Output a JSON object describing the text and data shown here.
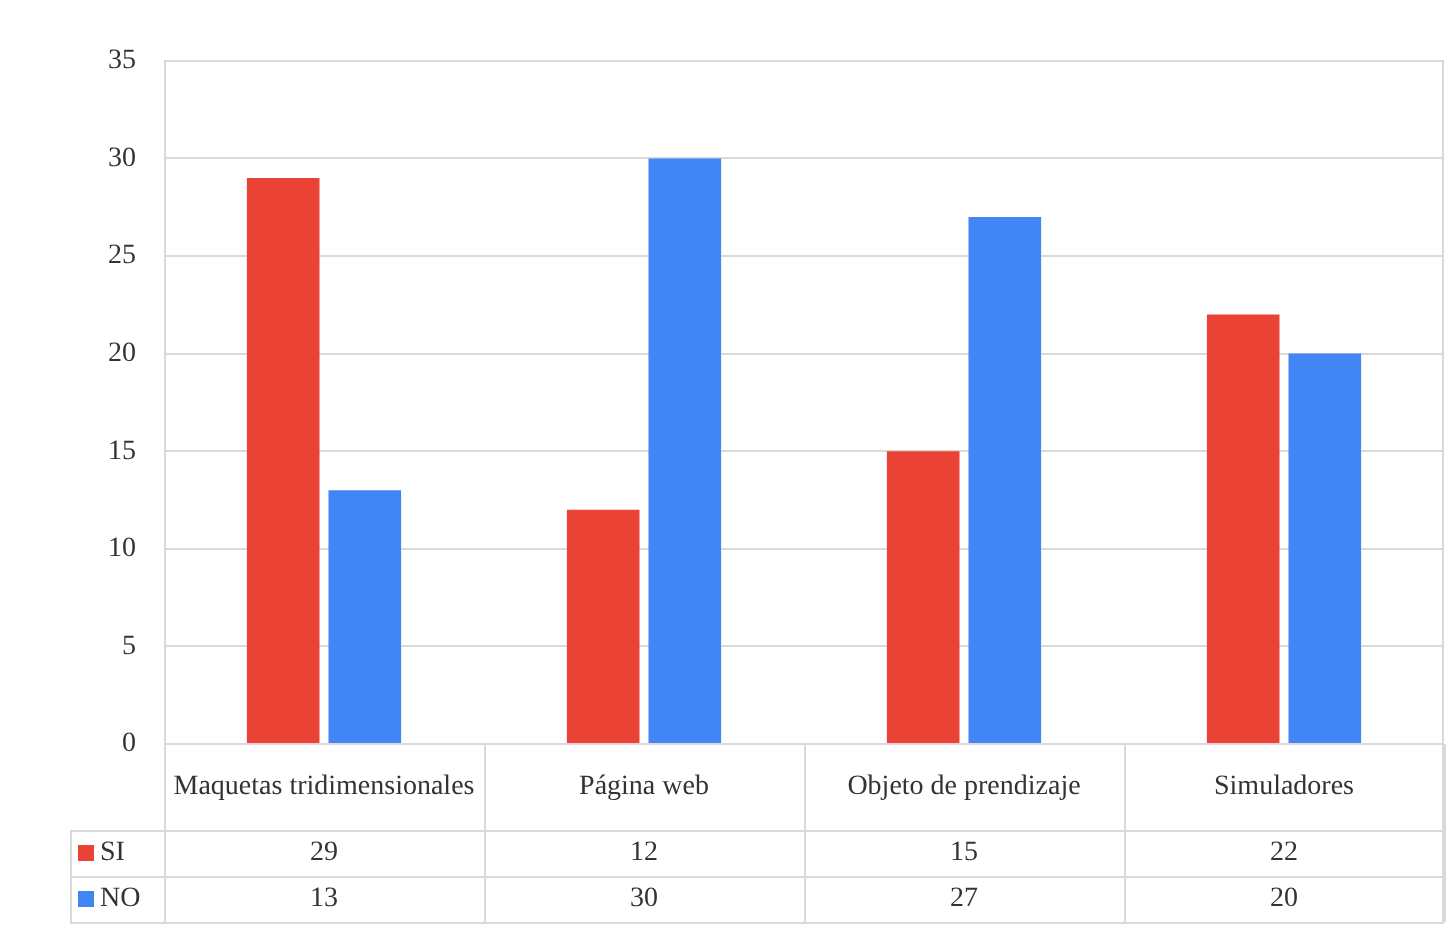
{
  "chart_data": {
    "type": "bar",
    "categories": [
      "Maquetas tridimensionales",
      "Página web",
      "Objeto de prendizaje",
      "Simuladores"
    ],
    "series": [
      {
        "name": "SI",
        "color": "#ea4335",
        "values": [
          29,
          12,
          15,
          22
        ]
      },
      {
        "name": "NO",
        "color": "#4285f4",
        "values": [
          13,
          30,
          27,
          20
        ]
      }
    ],
    "ylim": [
      0,
      35
    ],
    "yticks": [
      0,
      5,
      10,
      15,
      20,
      25,
      30,
      35
    ],
    "grid": "y",
    "legend": "bottom",
    "data_labels": true
  }
}
